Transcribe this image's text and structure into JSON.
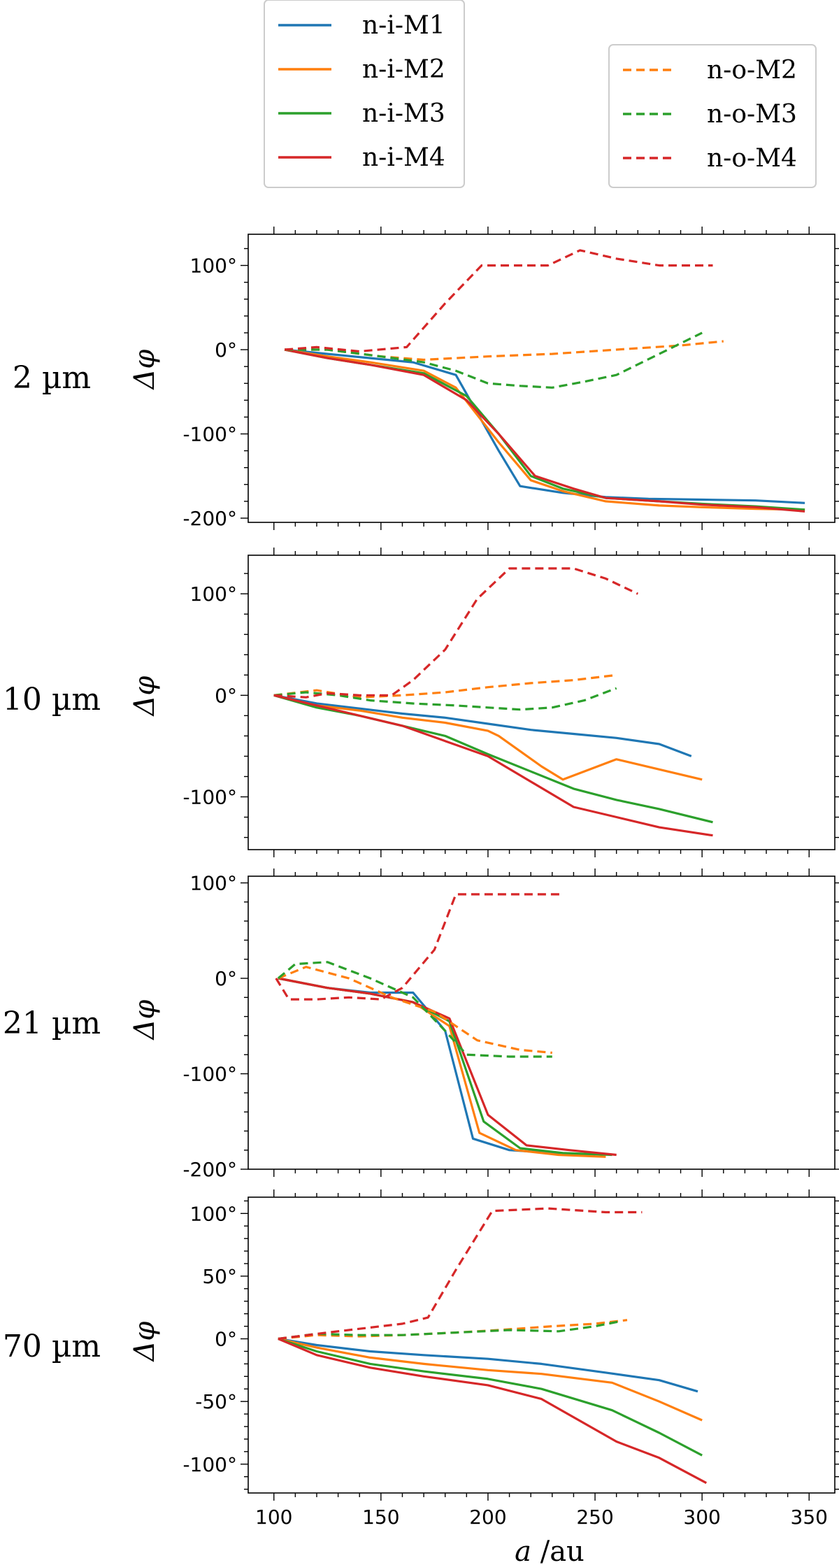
{
  "colors": {
    "M1": "#1f77b4",
    "M2": "#ff7f0e",
    "M3": "#2ca02c",
    "M4": "#d62728"
  },
  "legend": {
    "inner": [
      {
        "name": "n-i-M1",
        "color": "#1f77b4",
        "dashed": false
      },
      {
        "name": "n-i-M2",
        "color": "#ff7f0e",
        "dashed": false
      },
      {
        "name": "n-i-M3",
        "color": "#2ca02c",
        "dashed": false
      },
      {
        "name": "n-i-M4",
        "color": "#d62728",
        "dashed": false
      }
    ],
    "outer": [
      {
        "name": "n-o-M2",
        "color": "#ff7f0e",
        "dashed": true
      },
      {
        "name": "n-o-M3",
        "color": "#2ca02c",
        "dashed": true
      },
      {
        "name": "n-o-M4",
        "color": "#d62728",
        "dashed": true
      }
    ]
  },
  "xaxis": {
    "label_italic": "a",
    "label_unit": " /au",
    "xlim": [
      88,
      362
    ],
    "ticks": [
      100,
      150,
      200,
      250,
      300,
      350
    ]
  },
  "chart_data": [
    {
      "type": "line",
      "row_label": "2 µm",
      "ylabel": "Δφ",
      "ylim": [
        -205,
        137
      ],
      "yticks": [
        -200,
        -100,
        0,
        100
      ],
      "ytick_labels": [
        "-200°",
        "-100°",
        "0°",
        "100°"
      ],
      "series": [
        {
          "name": "n-i-M1",
          "dashed": false,
          "color": "#1f77b4",
          "x": [
            105,
            125,
            145,
            165,
            185,
            205,
            215,
            235,
            255,
            275,
            300,
            325,
            348
          ],
          "y": [
            0,
            -5,
            -10,
            -15,
            -30,
            -120,
            -162,
            -170,
            -175,
            -177,
            -178,
            -179,
            -182
          ]
        },
        {
          "name": "n-i-M2",
          "dashed": false,
          "color": "#ff7f0e",
          "x": [
            105,
            125,
            145,
            170,
            185,
            205,
            220,
            235,
            255,
            280,
            300,
            325,
            348
          ],
          "y": [
            0,
            -8,
            -15,
            -25,
            -45,
            -110,
            -155,
            -168,
            -180,
            -185,
            -187,
            -189,
            -190
          ]
        },
        {
          "name": "n-i-M3",
          "dashed": false,
          "color": "#2ca02c",
          "x": [
            105,
            125,
            145,
            170,
            190,
            205,
            220,
            235,
            255,
            280,
            300,
            325,
            348
          ],
          "y": [
            0,
            -10,
            -18,
            -28,
            -55,
            -100,
            -150,
            -165,
            -176,
            -180,
            -183,
            -186,
            -190
          ]
        },
        {
          "name": "n-i-M4",
          "dashed": false,
          "color": "#d62728",
          "x": [
            105,
            125,
            145,
            170,
            190,
            205,
            222,
            240,
            255,
            280,
            300,
            325,
            348
          ],
          "y": [
            0,
            -10,
            -18,
            -30,
            -60,
            -100,
            -150,
            -165,
            -176,
            -180,
            -184,
            -187,
            -192
          ]
        },
        {
          "name": "n-o-M2",
          "dashed": true,
          "color": "#ff7f0e",
          "x": [
            105,
            125,
            150,
            170,
            200,
            230,
            260,
            290,
            310
          ],
          "y": [
            0,
            0,
            -8,
            -12,
            -8,
            -5,
            0,
            5,
            10
          ]
        },
        {
          "name": "n-o-M3",
          "dashed": true,
          "color": "#2ca02c",
          "x": [
            105,
            125,
            150,
            170,
            185,
            200,
            215,
            230,
            245,
            260,
            280,
            300
          ],
          "y": [
            0,
            0,
            -8,
            -15,
            -25,
            -40,
            -43,
            -45,
            -38,
            -30,
            -5,
            20
          ]
        },
        {
          "name": "n-o-M4",
          "dashed": true,
          "color": "#d62728",
          "x": [
            105,
            120,
            140,
            162,
            180,
            197,
            212,
            228,
            243,
            260,
            280,
            305
          ],
          "y": [
            0,
            3,
            -2,
            3,
            55,
            100,
            100,
            100,
            118,
            108,
            100,
            100
          ]
        }
      ]
    },
    {
      "type": "line",
      "row_label": "10 µm",
      "ylabel": "Δφ",
      "ylim": [
        -152,
        138
      ],
      "yticks": [
        -100,
        0,
        100
      ],
      "ytick_labels": [
        "-100°",
        "0°",
        "100°"
      ],
      "series": [
        {
          "name": "n-i-M1",
          "dashed": false,
          "color": "#1f77b4",
          "x": [
            100,
            120,
            140,
            160,
            180,
            200,
            220,
            240,
            260,
            280,
            295
          ],
          "y": [
            0,
            -8,
            -13,
            -18,
            -22,
            -28,
            -34,
            -38,
            -42,
            -48,
            -60
          ]
        },
        {
          "name": "n-i-M2",
          "dashed": false,
          "color": "#ff7f0e",
          "x": [
            100,
            120,
            140,
            160,
            180,
            200,
            205,
            215,
            225,
            235,
            260,
            300
          ],
          "y": [
            0,
            -10,
            -15,
            -22,
            -27,
            -35,
            -40,
            -55,
            -70,
            -83,
            -63,
            -83
          ]
        },
        {
          "name": "n-i-M3",
          "dashed": false,
          "color": "#2ca02c",
          "x": [
            100,
            120,
            140,
            160,
            180,
            200,
            220,
            240,
            260,
            280,
            305
          ],
          "y": [
            0,
            -12,
            -20,
            -30,
            -40,
            -58,
            -75,
            -92,
            -103,
            -112,
            -125
          ]
        },
        {
          "name": "n-i-M4",
          "dashed": false,
          "color": "#d62728",
          "x": [
            100,
            120,
            140,
            160,
            180,
            200,
            220,
            240,
            260,
            280,
            305
          ],
          "y": [
            0,
            -10,
            -20,
            -30,
            -45,
            -60,
            -85,
            -110,
            -120,
            -130,
            -138
          ]
        },
        {
          "name": "n-o-M2",
          "dashed": true,
          "color": "#ff7f0e",
          "x": [
            100,
            120,
            140,
            160,
            180,
            200,
            220,
            240,
            260
          ],
          "y": [
            0,
            5,
            -2,
            0,
            3,
            8,
            12,
            15,
            20
          ]
        },
        {
          "name": "n-o-M3",
          "dashed": true,
          "color": "#2ca02c",
          "x": [
            100,
            115,
            130,
            145,
            165,
            185,
            200,
            215,
            230,
            245,
            260
          ],
          "y": [
            0,
            3,
            0,
            -5,
            -8,
            -10,
            -12,
            -14,
            -12,
            -5,
            7
          ]
        },
        {
          "name": "n-o-M4",
          "dashed": true,
          "color": "#d62728",
          "x": [
            100,
            115,
            125,
            140,
            155,
            165,
            180,
            195,
            210,
            225,
            240,
            255,
            270
          ],
          "y": [
            0,
            -2,
            2,
            0,
            0,
            15,
            45,
            95,
            125,
            125,
            125,
            115,
            100
          ]
        }
      ]
    },
    {
      "type": "line",
      "row_label": "21 µm",
      "ylabel": "Δφ",
      "ylim": [
        -200,
        107
      ],
      "yticks": [
        -200,
        -100,
        0,
        100
      ],
      "ytick_labels": [
        "-200°",
        "-100°",
        "0°",
        "100°"
      ],
      "series": [
        {
          "name": "n-i-M1",
          "dashed": false,
          "color": "#1f77b4",
          "x": [
            102,
            125,
            145,
            165,
            180,
            193,
            210,
            230,
            250
          ],
          "y": [
            0,
            -10,
            -15,
            -15,
            -55,
            -168,
            -180,
            -183,
            -186
          ]
        },
        {
          "name": "n-i-M2",
          "dashed": false,
          "color": "#ff7f0e",
          "x": [
            102,
            125,
            145,
            165,
            182,
            196,
            213,
            233,
            255
          ],
          "y": [
            0,
            -10,
            -16,
            -25,
            -50,
            -162,
            -180,
            -185,
            -187
          ]
        },
        {
          "name": "n-i-M3",
          "dashed": false,
          "color": "#2ca02c",
          "x": [
            102,
            125,
            145,
            165,
            182,
            198,
            215,
            235,
            258
          ],
          "y": [
            0,
            -10,
            -16,
            -25,
            -45,
            -150,
            -178,
            -183,
            -185
          ]
        },
        {
          "name": "n-i-M4",
          "dashed": false,
          "color": "#d62728",
          "x": [
            102,
            125,
            145,
            165,
            182,
            200,
            218,
            238,
            260
          ],
          "y": [
            0,
            -10,
            -16,
            -25,
            -42,
            -143,
            -175,
            -180,
            -185
          ]
        },
        {
          "name": "n-o-M2",
          "dashed": true,
          "color": "#ff7f0e",
          "x": [
            102,
            115,
            135,
            155,
            175,
            195,
            215,
            230
          ],
          "y": [
            0,
            12,
            0,
            -20,
            -35,
            -65,
            -75,
            -78
          ]
        },
        {
          "name": "n-o-M3",
          "dashed": true,
          "color": "#2ca02c",
          "x": [
            102,
            110,
            125,
            145,
            165,
            180,
            190,
            210,
            230
          ],
          "y": [
            0,
            15,
            17,
            0,
            -20,
            -55,
            -80,
            -82,
            -82
          ]
        },
        {
          "name": "n-o-M4",
          "dashed": true,
          "color": "#d62728",
          "x": [
            101,
            107,
            120,
            135,
            150,
            160,
            175,
            185,
            200,
            215,
            235
          ],
          "y": [
            0,
            -22,
            -22,
            -20,
            -22,
            -10,
            30,
            88,
            88,
            88,
            88
          ]
        }
      ]
    },
    {
      "type": "line",
      "row_label": "70 µm",
      "ylabel": "Δφ",
      "ylim": [
        -123,
        113
      ],
      "yticks": [
        -100,
        -50,
        0,
        50,
        100
      ],
      "ytick_labels": [
        "-100°",
        "-50°",
        "0°",
        "50°",
        "100°"
      ],
      "series": [
        {
          "name": "n-i-M1",
          "dashed": false,
          "color": "#1f77b4",
          "x": [
            102,
            120,
            145,
            170,
            200,
            225,
            255,
            280,
            298
          ],
          "y": [
            0,
            -5,
            -10,
            -13,
            -16,
            -20,
            -27,
            -33,
            -42
          ]
        },
        {
          "name": "n-i-M2",
          "dashed": false,
          "color": "#ff7f0e",
          "x": [
            102,
            120,
            145,
            170,
            200,
            225,
            258,
            280,
            300
          ],
          "y": [
            0,
            -7,
            -15,
            -20,
            -25,
            -28,
            -35,
            -50,
            -65
          ]
        },
        {
          "name": "n-i-M3",
          "dashed": false,
          "color": "#2ca02c",
          "x": [
            102,
            120,
            145,
            170,
            200,
            225,
            258,
            280,
            300
          ],
          "y": [
            0,
            -10,
            -20,
            -26,
            -32,
            -40,
            -57,
            -75,
            -93
          ]
        },
        {
          "name": "n-i-M4",
          "dashed": false,
          "color": "#d62728",
          "x": [
            102,
            120,
            145,
            170,
            200,
            225,
            260,
            280,
            302
          ],
          "y": [
            0,
            -13,
            -23,
            -30,
            -37,
            -48,
            -82,
            -95,
            -115
          ]
        },
        {
          "name": "n-o-M2",
          "dashed": true,
          "color": "#ff7f0e",
          "x": [
            102,
            120,
            140,
            160,
            185,
            205,
            230,
            250,
            265
          ],
          "y": [
            0,
            3,
            2,
            3,
            5,
            7,
            10,
            12,
            15
          ]
        },
        {
          "name": "n-o-M3",
          "dashed": true,
          "color": "#2ca02c",
          "x": [
            102,
            120,
            140,
            160,
            185,
            210,
            233,
            250,
            262
          ],
          "y": [
            0,
            4,
            3,
            3,
            5,
            7,
            6,
            10,
            14
          ]
        },
        {
          "name": "n-o-M4",
          "dashed": true,
          "color": "#d62728",
          "x": [
            102,
            125,
            150,
            160,
            172,
            185,
            202,
            228,
            255,
            272
          ],
          "y": [
            0,
            5,
            10,
            12,
            17,
            55,
            102,
            104,
            101,
            101
          ]
        }
      ]
    }
  ]
}
